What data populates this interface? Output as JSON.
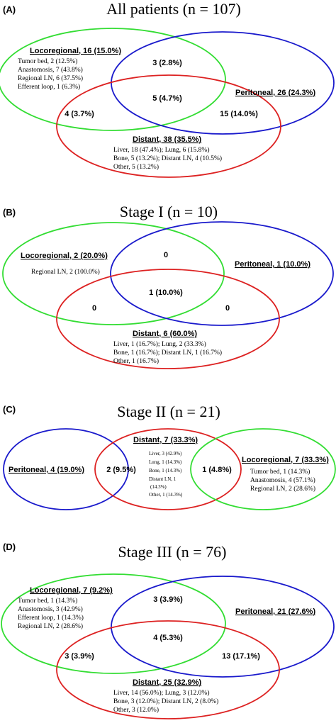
{
  "colors": {
    "locoregional": "#33dd33",
    "peritoneal": "#1a1acc",
    "distant": "#dd2222"
  },
  "panels": {
    "A": {
      "letter": "(A)",
      "title": "All patients (n = 107)",
      "locoregional": {
        "label": "Locoregional, 16 (15.0%)",
        "details": [
          "Tumor bed, 2 (12.5%)",
          "Anastomosis, 7 (43.8%)",
          "Regional LN, 6 (37.5%)",
          "Efferent loop, 1 (6.3%)"
        ]
      },
      "peritoneal": {
        "label": "Peritoneal, 26 (24.3%)"
      },
      "distant": {
        "label": "Distant, 38 (35.5%)",
        "details": [
          "Liver, 18 (47.4%); Lung, 6 (15.8%)",
          "Bone, 5 (13.2%); Distant LN, 4 (10.5%)",
          "Other, 5 (13.2%)"
        ]
      },
      "loco_perit": "3 (2.8%)",
      "loco_dist": "4 (3.7%)",
      "perit_dist": "15 (14.0%)",
      "all_three": "5 (4.7%)"
    },
    "B": {
      "letter": "(B)",
      "title": "Stage I (n = 10)",
      "locoregional": {
        "label": "Locoregional, 2 (20.0%)",
        "details": [
          "Regional LN, 2 (100.0%)"
        ]
      },
      "peritoneal": {
        "label": "Peritoneal, 1 (10.0%)"
      },
      "distant": {
        "label": "Distant, 6 (60.0%)",
        "details": [
          "Liver, 1 (16.7%); Lung, 2 (33.3%)",
          "Bone, 1 (16.7%); Distant LN, 1 (16.7%)",
          "Other, 1 (16.7%)"
        ]
      },
      "loco_perit": "0",
      "loco_dist": "0",
      "perit_dist": "0",
      "all_three": "1 (10.0%)"
    },
    "C": {
      "letter": "(C)",
      "title": "Stage II (n = 21)",
      "peritoneal": {
        "label": "Peritoneal, 4 (19.0%)"
      },
      "distant": {
        "label": "Distant, 7 (33.3%)",
        "details": [
          "Liver, 3 (42.9%)",
          "Lung, 1 (14.3%)",
          "Bone, 1 (14.3%)",
          "Distant LN, 1",
          "(14.3%)",
          "Other, 1 (14.3%)"
        ]
      },
      "locoregional": {
        "label": "Locoregional, 7 (33.3%)",
        "details": [
          "Tumor bed, 1 (14.3%)",
          "Anastomosis, 4 (57.1%)",
          "Regional LN, 2 (28.6%)"
        ]
      },
      "perit_dist": "2 (9.5%)",
      "dist_loco": "1 (4.8%)"
    },
    "D": {
      "letter": "(D)",
      "title": "Stage III (n = 76)",
      "locoregional": {
        "label": "Locoregional, 7 (9.2%)",
        "details": [
          "Tumor bed, 1 (14.3%)",
          "Anastomosis, 3 (42.9%)",
          "Efferent loop, 1 (14.3%)",
          "Regional LN, 2 (28.6%)"
        ]
      },
      "peritoneal": {
        "label": "Peritoneal, 21 (27.6%)"
      },
      "distant": {
        "label": "Distant, 25 (32.9%)",
        "details": [
          "Liver, 14 (56.0%); Lung, 3 (12.0%)",
          "Bone, 3 (12.0%); Distant LN, 2 (8.0%)",
          "Other, 3 (12.0%)"
        ]
      },
      "loco_perit": "3 (3.9%)",
      "loco_dist": "3 (3.9%)",
      "perit_dist": "13 (17.1%)",
      "all_three": "4 (5.3%)"
    }
  }
}
